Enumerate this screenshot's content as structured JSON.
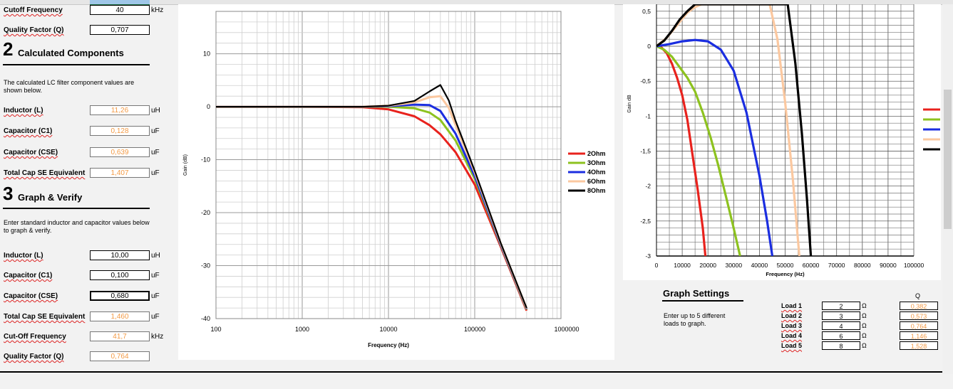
{
  "left": {
    "cutoff_label": "Cutoff Frequency",
    "cutoff_value": "40",
    "cutoff_unit": "kHz",
    "q_label": "Quality Factor (Q)",
    "q_value": "0,707",
    "section2_num": "2",
    "section2_title": "Calculated Components",
    "section2_desc": "The calculated LC filter component values are shown below.",
    "calc_rows": [
      {
        "label": "Inductor (L)",
        "value": "11,26",
        "unit": "uH"
      },
      {
        "label": "Capacitor (C1)",
        "value": "0,128",
        "unit": "uF"
      },
      {
        "label": "Capacitor (CSE)",
        "value": "0,639",
        "unit": "uF"
      },
      {
        "label": "Total Cap SE Equivalent",
        "value": "1,407",
        "unit": "uF"
      }
    ],
    "section3_num": "3",
    "section3_title": "Graph & Verify",
    "section3_desc": "Enter standard inductor and capacitor values below to graph & verify.",
    "verify_rows": [
      {
        "label": "Inductor (L)",
        "value": "10,00",
        "unit": "uH"
      },
      {
        "label": "Capacitor (C1)",
        "value": "0,100",
        "unit": "uF"
      },
      {
        "label": "Capacitor (CSE)",
        "value": "0,680",
        "unit": "uF"
      },
      {
        "label": "Total Cap SE Equivalent",
        "value": "1,460",
        "unit": "uF"
      },
      {
        "label": "Cut-Off Frequency",
        "value": "41,7",
        "unit": "kHz"
      },
      {
        "label": "Quality Factor (Q)",
        "value": "0,764",
        "unit": ""
      }
    ]
  },
  "graph_settings": {
    "title": "Graph Settings",
    "desc": "Enter up to 5 different loads to graph.",
    "q_header": "Q",
    "loads": [
      {
        "label": "Load 1",
        "value": "2",
        "unit": "Ω",
        "q": "0,382"
      },
      {
        "label": "Load 2",
        "value": "3",
        "unit": "Ω",
        "q": "0,573"
      },
      {
        "label": "Load 3",
        "value": "4",
        "unit": "Ω",
        "q": "0,764"
      },
      {
        "label": "Load 4",
        "value": "6",
        "unit": "Ω",
        "q": "1,146"
      },
      {
        "label": "Load 5",
        "value": "8",
        "unit": "Ω",
        "q": "1,528"
      }
    ]
  },
  "chart_data": [
    {
      "type": "line",
      "xlabel": "Frequency (Hz)",
      "ylabel": "Gain (dB)",
      "xscale": "log",
      "xlim": [
        100,
        1000000
      ],
      "ylim": [
        -40,
        18
      ],
      "xticks": [
        "100",
        "1000",
        "10000",
        "100000",
        "1000000"
      ],
      "yticks": [
        "10",
        "0",
        "-10",
        "-20",
        "-30",
        "-40"
      ],
      "grid": true,
      "legend": "right",
      "series": [
        {
          "name": "2Ohm",
          "color": "#e8221d",
          "x": [
            100,
            1000,
            5000,
            10000,
            20000,
            30000,
            40000,
            60000,
            100000,
            200000,
            400000
          ],
          "y": [
            0,
            0,
            -0.1,
            -0.5,
            -1.8,
            -3.5,
            -5.2,
            -8.6,
            -14.7,
            -26.4,
            -38.5
          ]
        },
        {
          "name": "3Ohm",
          "color": "#8dc21f",
          "x": [
            100,
            1000,
            5000,
            10000,
            20000,
            30000,
            40000,
            60000,
            100000,
            200000,
            400000
          ],
          "y": [
            0,
            0,
            0,
            0,
            -0.3,
            -1.1,
            -2.5,
            -6.4,
            -13.6,
            -26.1,
            -38.3
          ]
        },
        {
          "name": "4Ohm",
          "color": "#1b2ee0",
          "x": [
            100,
            1000,
            5000,
            10000,
            20000,
            30000,
            40000,
            60000,
            100000,
            200000,
            400000
          ],
          "y": [
            0,
            0,
            0,
            0.1,
            0.4,
            0.3,
            -0.8,
            -5.1,
            -13.1,
            -26.0,
            -38.2
          ]
        },
        {
          "name": "6Ohm",
          "color": "#fbc8a0",
          "x": [
            100,
            1000,
            5000,
            10000,
            20000,
            30000,
            40000,
            50000,
            60000,
            100000,
            200000,
            400000
          ],
          "y": [
            0,
            0,
            0,
            0.2,
            0.8,
            1.8,
            2.0,
            -0.2,
            -3.5,
            -12.4,
            -25.8,
            -38.1
          ]
        },
        {
          "name": "8Ohm",
          "color": "#000000",
          "x": [
            100,
            1000,
            5000,
            10000,
            20000,
            30000,
            40000,
            50000,
            60000,
            100000,
            200000,
            400000
          ],
          "y": [
            0,
            0,
            0,
            0.2,
            1.1,
            2.9,
            4.1,
            1.2,
            -2.7,
            -12.1,
            -25.7,
            -38.0
          ]
        }
      ]
    },
    {
      "type": "line",
      "xlabel": "Frequency (Hz)",
      "ylabel": "Gain dB",
      "xlim": [
        0,
        100000
      ],
      "ylim": [
        -3,
        0.6
      ],
      "xticks": [
        "0",
        "10000",
        "20000",
        "30000",
        "40000",
        "50000",
        "60000",
        "70000",
        "80000",
        "90000",
        "100000"
      ],
      "yticks": [
        "0,5",
        "0",
        "-0,5",
        "-1",
        "-1,5",
        "-2",
        "-2,5",
        "-3"
      ],
      "grid": true,
      "series": [
        {
          "name": "2Ohm",
          "color": "#e8221d",
          "x": [
            0,
            2000,
            4000,
            6000,
            8000,
            10000,
            12000,
            14000,
            16000,
            18000,
            19000
          ],
          "y": [
            0,
            -0.02,
            -0.1,
            -0.25,
            -0.45,
            -0.7,
            -1.05,
            -1.55,
            -2.05,
            -2.6,
            -3
          ]
        },
        {
          "name": "3Ohm",
          "color": "#8dc21f",
          "x": [
            0,
            3000,
            6000,
            9000,
            12000,
            15000,
            18000,
            21000,
            24000,
            27000,
            30000,
            32500
          ],
          "y": [
            0,
            -0.05,
            -0.15,
            -0.3,
            -0.45,
            -0.65,
            -0.95,
            -1.3,
            -1.7,
            -2.15,
            -2.6,
            -3
          ]
        },
        {
          "name": "4Ohm",
          "color": "#1b2ee0",
          "x": [
            0,
            5000,
            10000,
            15000,
            20000,
            25000,
            30000,
            35000,
            40000,
            43000,
            45000
          ],
          "y": [
            0,
            0.03,
            0.07,
            0.09,
            0.07,
            -0.05,
            -0.35,
            -0.95,
            -1.85,
            -2.5,
            -3
          ]
        },
        {
          "name": "6Ohm",
          "color": "#fbc8a0",
          "x": [
            0,
            4000,
            8000,
            12000,
            15000,
            17500,
            44000,
            47000,
            50000,
            53000,
            55500
          ],
          "y": [
            0,
            0.12,
            0.3,
            0.48,
            0.56,
            0.6,
            0.6,
            0.1,
            -0.8,
            -1.9,
            -3
          ]
        },
        {
          "name": "8Ohm",
          "color": "#000000",
          "x": [
            0,
            3000,
            6000,
            9000,
            12000,
            15000,
            51000,
            54000,
            56500,
            58500,
            60000
          ],
          "y": [
            0,
            0.08,
            0.22,
            0.38,
            0.5,
            0.6,
            0.6,
            -0.25,
            -1.25,
            -2.2,
            -3
          ]
        }
      ]
    }
  ]
}
